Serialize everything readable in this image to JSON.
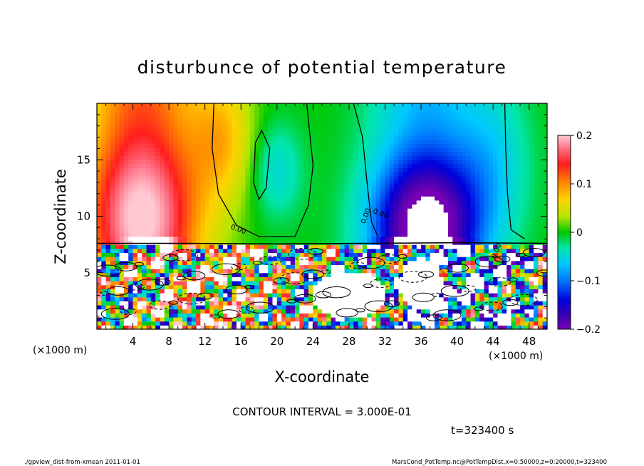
{
  "chart_data": {
    "type": "heatmap",
    "title": "disturbunce of potential temperature",
    "xlabel": "X-coordinate",
    "ylabel": "Z-coordinate",
    "x_unit": "(×1000 m)",
    "y_unit": "(×1000 m)",
    "xlim": [
      0,
      50
    ],
    "ylim": [
      0,
      20
    ],
    "x_ticks": [
      4,
      8,
      12,
      16,
      20,
      24,
      28,
      32,
      36,
      40,
      44,
      48
    ],
    "x_tick_labels": [
      "4",
      "8",
      "12",
      "16",
      "20",
      "24",
      "28",
      "32",
      "36",
      "40",
      "44",
      "48"
    ],
    "y_ticks": [
      5,
      10,
      15
    ],
    "y_tick_labels": [
      "5",
      "10",
      "15"
    ],
    "colorbar": {
      "range": [
        -0.2,
        0.2
      ],
      "ticks": [
        0.2,
        0.1,
        0,
        -0.1,
        -0.2
      ],
      "tick_labels": [
        "0.2",
        "0.1",
        "0",
        "−0.1",
        "−0.2"
      ]
    },
    "contour_interval_text": "CONTOUR INTERVAL = 3.000E-01",
    "time_text": "t=323400 s",
    "contour_labels": [
      "0.00",
      "0.00",
      "0.00",
      "0.00"
    ]
  },
  "footer": {
    "left": "./gpview_dist-from-xmean  2011-01-01",
    "right": "MarsCond_PotTemp.nc@PotTempDist,x=0:50000,z=0:20000,t=323400"
  }
}
